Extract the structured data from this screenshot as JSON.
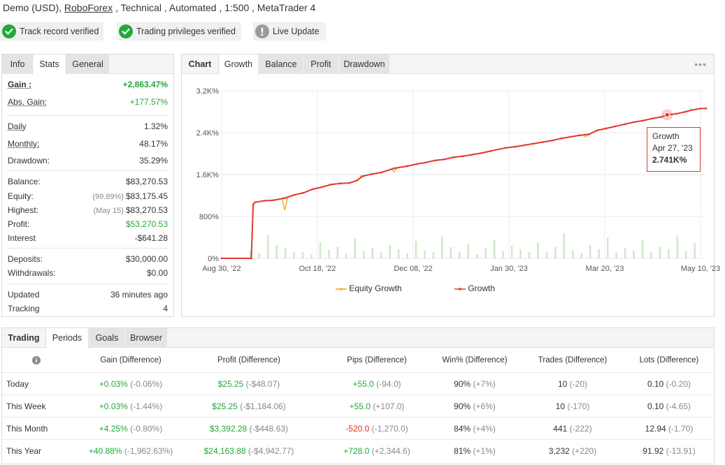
{
  "header": {
    "prefix": "Demo (USD),",
    "broker": "RoboForex",
    "suffix": ", Technical , Automated , 1:500 , MetaTrader 4"
  },
  "badges": [
    {
      "label": "Track record verified",
      "icon": "check-circle-icon",
      "color": "#22a83a"
    },
    {
      "label": "Trading privileges verified",
      "icon": "check-circle-icon",
      "color": "#22a83a"
    },
    {
      "label": "Live Update",
      "icon": "exclamation-circle-icon",
      "color": "#9a9a9a"
    }
  ],
  "info_panel": {
    "tabs": [
      "Info",
      "Stats",
      "General"
    ],
    "active_tab": "Stats",
    "stats": {
      "gain": {
        "label": "Gain :",
        "value": "+2,863.47%"
      },
      "abs_gain": {
        "label": "Abs. Gain:",
        "value": "+177.57%"
      },
      "daily": {
        "label": "Daily",
        "value": "1.32%"
      },
      "monthly": {
        "label": "Monthly:",
        "value": "48.17%"
      },
      "drawdown": {
        "label": "Drawdown:",
        "value": "35.29%"
      },
      "balance": {
        "label": "Balance:",
        "value": "$83,270.53"
      },
      "equity": {
        "label": "Equity:",
        "note": "(99.89%)",
        "value": "$83,175.45"
      },
      "highest": {
        "label": "Highest:",
        "note": "(May 15)",
        "value": "$83,270.53"
      },
      "profit": {
        "label": "Profit:",
        "value": "$53,270.53"
      },
      "interest": {
        "label": "Interest",
        "value": "-$641.28"
      },
      "deposits": {
        "label": "Deposits:",
        "value": "$30,000.00"
      },
      "withdrawals": {
        "label": "Withdrawals:",
        "value": "$0.00"
      },
      "updated": {
        "label": "Updated",
        "value": "36 minutes ago"
      },
      "tracking": {
        "label": "Tracking",
        "value": "4"
      }
    }
  },
  "chart_panel": {
    "tabs": [
      "Chart",
      "Growth",
      "Balance",
      "Profit",
      "Drawdown"
    ],
    "active_tab": "Growth",
    "more_icon": "more-dots-icon",
    "tooltip": {
      "title": "Growth",
      "date": "Apr 27, '23",
      "value": "2.741K%"
    }
  },
  "chart_data": {
    "type": "line",
    "y_ticks": [
      "0%",
      "800%",
      "1.6K%",
      "2.4K%",
      "3.2K%"
    ],
    "ylim": [
      0,
      3200
    ],
    "x_ticks": [
      "Aug 30, '22",
      "Oct 18, '22",
      "Dec 08, '22",
      "Jan 30, '23",
      "Mar 20, '23",
      "May 10, '23"
    ],
    "xlim": [
      "2022-08-30",
      "2023-05-18"
    ],
    "grid": true,
    "legend_position": "bottom",
    "series": [
      {
        "name": "Equity Growth",
        "color": "#f5a623",
        "dips": [
          {
            "x": "2022-10-03",
            "y": 920
          },
          {
            "x": "2022-11-14",
            "y": 1570
          },
          {
            "x": "2022-12-01",
            "y": 1650
          },
          {
            "x": "2023-03-14",
            "y": 2320
          }
        ]
      },
      {
        "name": "Growth",
        "color": "#e03a2f",
        "x": [
          "2022-08-30",
          "2022-09-15",
          "2022-09-16",
          "2022-09-17",
          "2022-09-22",
          "2022-09-27",
          "2022-10-03",
          "2022-10-08",
          "2022-10-13",
          "2022-10-18",
          "2022-10-23",
          "2022-10-28",
          "2022-11-02",
          "2022-11-07",
          "2022-11-11",
          "2022-11-14",
          "2022-11-19",
          "2022-11-24",
          "2022-12-01",
          "2022-12-08",
          "2022-12-13",
          "2022-12-18",
          "2022-12-23",
          "2022-12-28",
          "2023-01-02",
          "2023-01-07",
          "2023-01-12",
          "2023-01-17",
          "2023-01-22",
          "2023-01-30",
          "2023-02-04",
          "2023-02-09",
          "2023-02-14",
          "2023-02-19",
          "2023-02-24",
          "2023-03-01",
          "2023-03-06",
          "2023-03-11",
          "2023-03-16",
          "2023-03-20",
          "2023-03-25",
          "2023-03-30",
          "2023-04-04",
          "2023-04-09",
          "2023-04-14",
          "2023-04-19",
          "2023-04-24",
          "2023-04-27",
          "2023-05-02",
          "2023-05-07",
          "2023-05-10",
          "2023-05-15",
          "2023-05-18"
        ],
        "values": [
          0,
          0,
          1030,
          1070,
          1100,
          1110,
          1150,
          1210,
          1250,
          1320,
          1360,
          1410,
          1430,
          1440,
          1490,
          1570,
          1610,
          1640,
          1720,
          1760,
          1800,
          1830,
          1870,
          1890,
          1930,
          1950,
          1980,
          2010,
          2050,
          2110,
          2130,
          2160,
          2190,
          2220,
          2250,
          2290,
          2320,
          2350,
          2370,
          2440,
          2480,
          2520,
          2560,
          2600,
          2630,
          2670,
          2700,
          2741,
          2760,
          2800,
          2830,
          2860,
          2863
        ]
      }
    ],
    "deposit_bars": [
      120,
      80,
      350,
      200,
      150,
      100,
      90,
      60,
      250,
      130,
      180,
      70,
      300,
      110,
      160,
      90,
      200,
      140,
      80,
      260,
      120,
      90,
      330,
      170,
      100,
      220,
      60,
      150,
      280,
      110,
      190,
      130,
      90,
      240,
      100,
      170,
      380,
      120,
      80,
      200,
      140,
      310,
      90,
      160,
      120,
      270,
      100,
      180,
      140,
      330,
      110,
      230
    ]
  },
  "periods_panel": {
    "tabs": [
      "Trading",
      "Periods",
      "Goals",
      "Browser"
    ],
    "active_tab": "Periods",
    "info_icon": "info-circle-icon",
    "columns": [
      "Gain (Difference)",
      "Profit (Difference)",
      "Pips (Difference)",
      "Win% (Difference)",
      "Trades (Difference)",
      "Lots (Difference)"
    ],
    "rows": [
      {
        "label": "Today",
        "gain": "+0.03%",
        "gain_diff": "(-0.06%)",
        "profit": "$25.25",
        "profit_diff": "(-$48.07)",
        "pips": "+55.0",
        "pips_diff": "(-94.0)",
        "win": "90%",
        "win_diff": "(+7%)",
        "trades": "10",
        "trades_diff": "(-20)",
        "lots": "0.10",
        "lots_diff": "(-0.20)",
        "pips_color": "green"
      },
      {
        "label": "This Week",
        "gain": "+0.03%",
        "gain_diff": "(-1.44%)",
        "profit": "$25.25",
        "profit_diff": "(-$1,184.06)",
        "pips": "+55.0",
        "pips_diff": "(+107.0)",
        "win": "90%",
        "win_diff": "(+6%)",
        "trades": "10",
        "trades_diff": "(-170)",
        "lots": "0.10",
        "lots_diff": "(-4.65)",
        "pips_color": "green"
      },
      {
        "label": "This Month",
        "gain": "+4.25%",
        "gain_diff": "(-0.80%)",
        "profit": "$3,392.28",
        "profit_diff": "(-$448.63)",
        "pips": "-520.0",
        "pips_diff": "(-1,270.0)",
        "win": "84%",
        "win_diff": "(+4%)",
        "trades": "441",
        "trades_diff": "(-222)",
        "lots": "12.94",
        "lots_diff": "(-1.70)",
        "pips_color": "red"
      },
      {
        "label": "This Year",
        "gain": "+40.88%",
        "gain_diff": "(-1,962.63%)",
        "profit": "$24,163.88",
        "profit_diff": "(-$4,942.77)",
        "pips": "+728.0",
        "pips_diff": "(+2,344.6)",
        "win": "81%",
        "win_diff": "(+1%)",
        "trades": "3,232",
        "trades_diff": "(+220)",
        "lots": "91.92",
        "lots_diff": "(-13.91)",
        "pips_color": "green"
      }
    ]
  }
}
